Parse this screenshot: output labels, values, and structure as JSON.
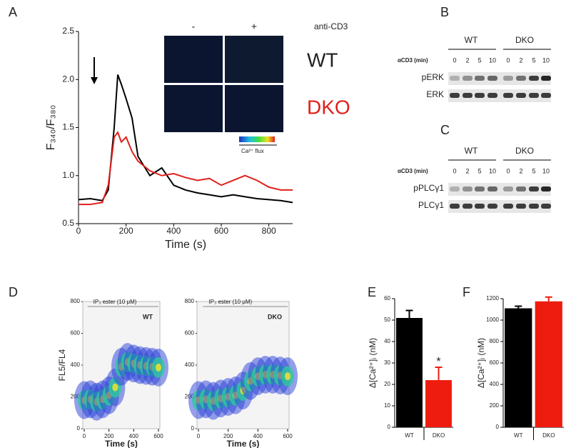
{
  "panel_letters": [
    "A",
    "B",
    "C",
    "D",
    "E",
    "F"
  ],
  "chart_data": [
    {
      "type": "line",
      "xlabel": "Time (s)",
      "ylabel": "F₃₄₀/F₃₈₀",
      "x": [
        0,
        50,
        100,
        125,
        150,
        165,
        180,
        200,
        225,
        250,
        300,
        350,
        400,
        450,
        500,
        550,
        600,
        650,
        700,
        750,
        800,
        850,
        900
      ],
      "series": [
        {
          "name": "WT",
          "color": "#000000",
          "values": [
            0.75,
            0.76,
            0.74,
            0.85,
            1.5,
            2.05,
            1.95,
            1.8,
            1.6,
            1.2,
            1.0,
            1.08,
            0.9,
            0.85,
            0.82,
            0.8,
            0.78,
            0.8,
            0.78,
            0.76,
            0.75,
            0.74,
            0.72
          ]
        },
        {
          "name": "DKO",
          "color": "#e0201b",
          "values": [
            0.7,
            0.7,
            0.72,
            0.9,
            1.4,
            1.45,
            1.35,
            1.4,
            1.25,
            1.15,
            1.05,
            1.0,
            1.02,
            0.98,
            0.95,
            0.97,
            0.9,
            0.95,
            1.0,
            0.95,
            0.88,
            0.85,
            0.85
          ]
        }
      ],
      "xlim": [
        0,
        900
      ],
      "xticks": [
        0,
        200,
        400,
        600,
        800
      ],
      "ylim": [
        0.5,
        2.5
      ],
      "yticks": [
        {
          "value": 0.5,
          "label": "0.5"
        },
        {
          "value": 1,
          "label": "1.0"
        },
        {
          "value": 1.5,
          "label": "1.5"
        },
        {
          "value": 2,
          "label": "2.0"
        },
        {
          "value": 2.5,
          "label": "2.5"
        }
      ],
      "inset": {
        "minus": "-",
        "plus": "+",
        "stimulus": "anti-CD3",
        "colorbar": "Ca²⁺ flux"
      }
    },
    {
      "type": "scatter",
      "label": "WT",
      "annotation": "IP₃ ester (10 μM)",
      "xlabel": "Time (s)",
      "ylabel": "FL5/FL4",
      "x": [
        0,
        50,
        100,
        150,
        200,
        250,
        300,
        350,
        400,
        450,
        500,
        550,
        600
      ],
      "values": [
        180,
        185,
        170,
        185,
        210,
        260,
        390,
        420,
        410,
        400,
        395,
        390,
        385
      ],
      "xlim": [
        0,
        600
      ],
      "xticks": [
        0,
        200,
        400,
        600
      ],
      "ylim": [
        0,
        800
      ],
      "yticks": [
        0,
        200,
        400,
        600,
        800
      ]
    },
    {
      "type": "scatter",
      "label": "DKO",
      "annotation": "IP₃ ester (10 μM)",
      "xlabel": "Time (s)",
      "x": [
        0,
        50,
        100,
        150,
        200,
        250,
        300,
        350,
        400,
        450,
        500,
        550,
        600
      ],
      "values": [
        180,
        185,
        175,
        190,
        200,
        210,
        240,
        300,
        330,
        340,
        340,
        335,
        330
      ],
      "xlim": [
        0,
        600
      ],
      "xticks": [
        0,
        200,
        400,
        600
      ],
      "ylim": [
        0,
        800
      ],
      "yticks": [
        0,
        200,
        400,
        600,
        800
      ]
    },
    {
      "type": "bar",
      "ylabel": "Δ[Ca²⁺]ᵢ (nM)",
      "categories": [
        "WT",
        "DKO"
      ],
      "values": [
        51,
        22
      ],
      "errors": [
        3.5,
        6
      ],
      "colors": [
        "#000000",
        "#ee1c0e"
      ],
      "annotation": "*",
      "ylim": [
        0,
        60
      ],
      "yticks": [
        0,
        10,
        20,
        30,
        40,
        50,
        60
      ]
    },
    {
      "type": "bar",
      "ylabel": "Δ[Ca²⁺]ᵢ (nM)",
      "categories": [
        "WT",
        "DKO"
      ],
      "values": [
        1110,
        1175
      ],
      "errors": [
        20,
        40
      ],
      "colors": [
        "#000000",
        "#ee1c0e"
      ],
      "ylim": [
        0,
        1200
      ],
      "yticks": [
        0,
        200,
        400,
        600,
        800,
        1000,
        1200
      ]
    }
  ],
  "blots": [
    {
      "groups": [
        "WT",
        "DKO"
      ],
      "axis_label": "αCD3 (min)",
      "lanes": [
        "0",
        "2",
        "5",
        "10",
        "0",
        "2",
        "5",
        "10"
      ],
      "rows": [
        "pERK",
        "ERK"
      ]
    },
    {
      "groups": [
        "WT",
        "DKO"
      ],
      "axis_label": "αCD3 (min)",
      "lanes": [
        "0",
        "2",
        "5",
        "10",
        "0",
        "2",
        "5",
        "10"
      ],
      "rows": [
        "pPLCγ1",
        "PLCγ1"
      ]
    }
  ]
}
